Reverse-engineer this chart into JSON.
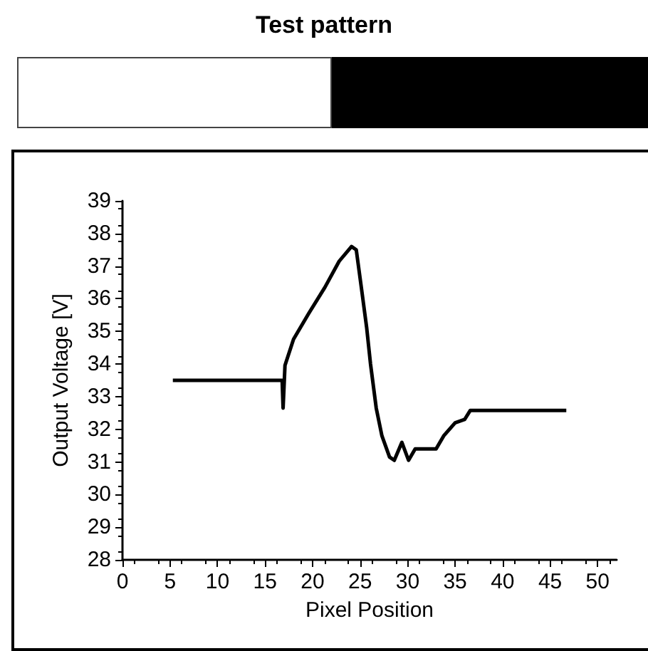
{
  "chart_data": {
    "type": "line",
    "title": "Test pattern",
    "xlabel": "Pixel Position",
    "ylabel": "Output Voltage [V]",
    "xlim": [
      0,
      52
    ],
    "xticks": [
      0,
      5,
      10,
      15,
      20,
      25,
      30,
      35,
      40,
      45,
      50
    ],
    "ylim": [
      28,
      39
    ],
    "yticks": [
      28,
      29,
      30,
      31,
      32,
      33,
      34,
      35,
      36,
      37,
      38,
      39
    ],
    "grid": false,
    "marker": "none",
    "line_style": "solid",
    "series": [
      {
        "color": "#000000",
        "x": [
          5.3,
          16.8,
          16.9,
          17.1,
          18.0,
          19.6,
          21.3,
          22.8,
          24.1,
          24.6,
          25.2,
          25.7,
          26.1,
          26.7,
          27.3,
          28.1,
          28.6,
          29.4,
          30.1,
          30.8,
          33.0,
          33.8,
          35.0,
          36.0,
          36.6,
          46.7
        ],
        "values": [
          33.5,
          33.5,
          32.65,
          33.96,
          34.76,
          35.55,
          36.35,
          37.15,
          37.6,
          37.5,
          36.2,
          35.1,
          34.0,
          32.65,
          31.8,
          31.15,
          31.05,
          31.6,
          31.05,
          31.4,
          31.4,
          31.8,
          32.2,
          32.3,
          32.58,
          32.58
        ]
      }
    ]
  }
}
